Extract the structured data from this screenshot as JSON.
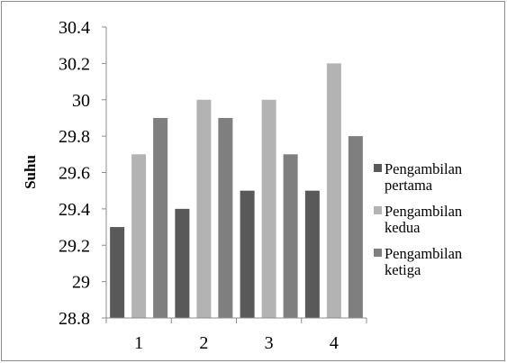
{
  "chart_data": {
    "type": "bar",
    "title": "",
    "xlabel": "",
    "ylabel": "Suhu",
    "categories": [
      "1",
      "2",
      "3",
      "4"
    ],
    "ylim": [
      28.8,
      30.4
    ],
    "yticks": [
      "28.8",
      "29",
      "29.2",
      "29.4",
      "29.6",
      "29.8",
      "30",
      "30.2",
      "30.4"
    ],
    "grid": false,
    "legend_position": "right",
    "series": [
      {
        "name": "Pengambilan pertama",
        "label_lines": [
          "Pengambilan",
          "pertama"
        ],
        "color": "#595959",
        "values": [
          29.3,
          29.4,
          29.5,
          29.5
        ]
      },
      {
        "name": "Pengambilan kedua",
        "label_lines": [
          "Pengambilan",
          "kedua"
        ],
        "color": "#b3b3b3",
        "values": [
          29.7,
          30.0,
          30.0,
          30.2
        ]
      },
      {
        "name": "Pengambilan ketiga",
        "label_lines": [
          "Pengambilan",
          "ketiga"
        ],
        "color": "#7f7f7f",
        "values": [
          29.9,
          29.9,
          29.7,
          29.8
        ]
      }
    ]
  }
}
